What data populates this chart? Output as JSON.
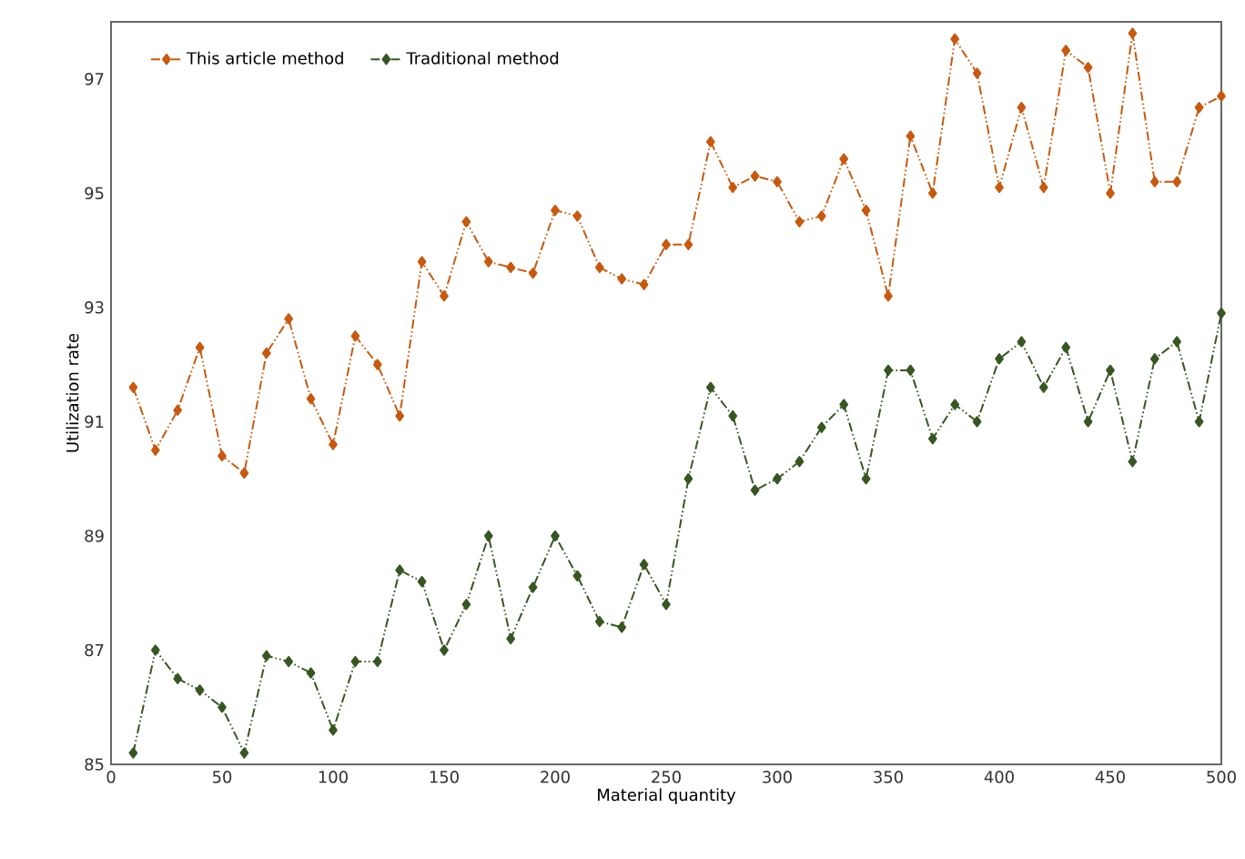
{
  "chart_data": {
    "type": "line",
    "xlabel": "Material quantity",
    "ylabel": "Utilization rate",
    "x": [
      10,
      20,
      30,
      40,
      50,
      60,
      70,
      80,
      90,
      100,
      110,
      120,
      130,
      140,
      150,
      160,
      170,
      180,
      190,
      200,
      210,
      220,
      230,
      240,
      250,
      260,
      270,
      280,
      290,
      300,
      310,
      320,
      330,
      340,
      350,
      360,
      370,
      380,
      390,
      400,
      410,
      420,
      430,
      440,
      450,
      460,
      470,
      480,
      490,
      500
    ],
    "series": [
      {
        "name": "This article method",
        "color": "#c55a11",
        "values": [
          91.6,
          90.5,
          91.2,
          92.3,
          90.4,
          90.1,
          92.2,
          92.8,
          91.4,
          90.6,
          92.5,
          92.0,
          91.1,
          93.8,
          93.2,
          94.5,
          93.8,
          93.7,
          93.6,
          94.7,
          94.6,
          93.7,
          93.5,
          93.4,
          94.1,
          94.1,
          95.9,
          95.1,
          95.3,
          95.2,
          94.5,
          94.6,
          95.6,
          94.7,
          93.2,
          96.0,
          95.0,
          97.7,
          97.1,
          95.1,
          96.5,
          95.1,
          97.5,
          97.2,
          95.0,
          97.8,
          95.2,
          95.2,
          96.5,
          96.7
        ]
      },
      {
        "name": "Traditional method",
        "color": "#375623",
        "values": [
          85.2,
          87.0,
          86.5,
          86.3,
          86.0,
          85.2,
          86.9,
          86.8,
          86.6,
          85.6,
          86.8,
          86.8,
          88.4,
          88.2,
          87.0,
          87.8,
          89.0,
          87.2,
          88.1,
          89.0,
          88.3,
          87.5,
          87.4,
          88.5,
          87.8,
          90.0,
          91.6,
          91.1,
          89.8,
          90.0,
          90.3,
          90.9,
          91.3,
          90.0,
          91.9,
          91.9,
          90.7,
          91.3,
          91.0,
          92.1,
          92.4,
          91.6,
          92.3,
          91.0,
          91.9,
          90.3,
          92.1,
          92.4,
          91.0,
          92.9
        ]
      }
    ],
    "xlim": [
      0,
      500
    ],
    "xticks": [
      0,
      50,
      100,
      150,
      200,
      250,
      300,
      350,
      400,
      450,
      500
    ],
    "ylim": [
      85,
      98
    ],
    "yticks": [
      85,
      87,
      89,
      91,
      93,
      95,
      97
    ],
    "grid": false,
    "legend": "top left",
    "marker": "diamond",
    "line_style": "dashed"
  }
}
